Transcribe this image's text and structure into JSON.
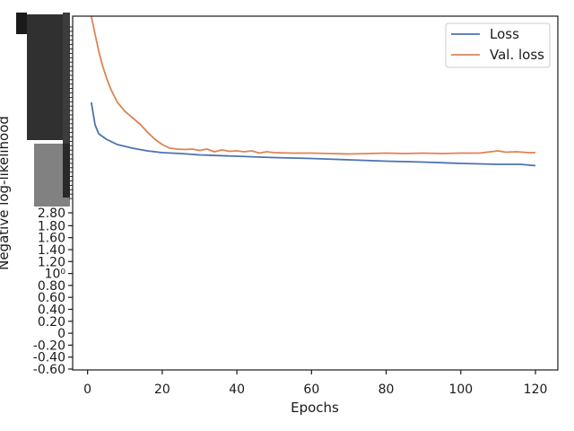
{
  "chart_data": {
    "type": "line",
    "xlabel": "Epochs",
    "ylabel": "Negative log-likelihood",
    "xlim": [
      -4,
      126
    ],
    "x_ticks": [
      0,
      20,
      40,
      60,
      80,
      100,
      120
    ],
    "y_tick_labels": [
      "-0.60",
      "-0.40",
      "-0.20",
      "0",
      "0.20",
      "0.40",
      "0.60",
      "0.80",
      "10⁰",
      "1.20",
      "1.40",
      "1.60",
      "1.80",
      "2.80"
    ],
    "legend": {
      "position": "top-right",
      "entries": [
        "Loss",
        "Val. loss"
      ]
    },
    "series": [
      {
        "name": "Loss",
        "color": "#4c72b0",
        "x": [
          1,
          2,
          3,
          5,
          8,
          12,
          16,
          20,
          25,
          30,
          40,
          50,
          60,
          70,
          80,
          90,
          100,
          110,
          116,
          120
        ],
        "y": [
          114,
          139,
          149,
          155,
          161,
          165,
          168,
          170,
          171,
          172.5,
          174,
          175.5,
          176.5,
          178,
          179.5,
          180.5,
          182,
          183,
          183,
          184.5
        ]
      },
      {
        "name": "Val. loss",
        "color": "#dd8452",
        "x": [
          1,
          2,
          3,
          4,
          5,
          6,
          7,
          8,
          10,
          12,
          14,
          16,
          18,
          20,
          22,
          24,
          26,
          28,
          30,
          32,
          34,
          36,
          38,
          40,
          42,
          44,
          46,
          48,
          50,
          55,
          60,
          65,
          70,
          75,
          80,
          85,
          90,
          95,
          100,
          105,
          110,
          112,
          115,
          118,
          120
        ],
        "y": [
          18,
          38,
          57,
          73,
          86,
          97,
          106,
          114,
          124,
          131,
          138,
          147,
          155,
          161,
          165,
          166,
          166.5,
          166,
          167.5,
          166,
          169,
          167,
          168.5,
          168,
          169,
          168,
          170.5,
          169,
          170,
          170.5,
          170.5,
          171,
          171.5,
          171,
          170.5,
          171,
          170.5,
          171,
          170.5,
          170.5,
          168,
          169.5,
          169,
          170,
          170
        ]
      }
    ]
  }
}
